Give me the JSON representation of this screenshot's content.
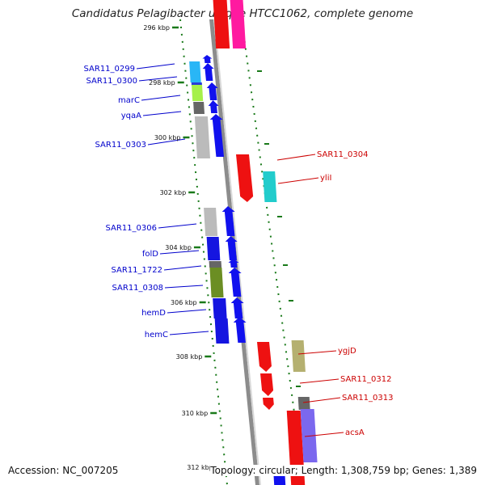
{
  "title": "Candidatus Pelagibacter ubique HTCC1062, complete genome",
  "footer": {
    "accession": "Accession: NC_007205",
    "topology": "Topology: circular; Length: 1,308,759 bp; Genes: 1,389"
  },
  "colors": {
    "forward_label": "#0000cc",
    "reverse_label": "#cc0000",
    "tick": "#1a7a1a",
    "backbone": "#8c8c8c"
  },
  "ticks": [
    {
      "label": "296 kbp",
      "side": "left"
    },
    {
      "label": "298 kbp",
      "side": "left"
    },
    {
      "label": "300 kbp",
      "side": "left"
    },
    {
      "label": "302 kbp",
      "side": "left"
    },
    {
      "label": "304 kbp",
      "side": "left"
    },
    {
      "label": "306 kbp",
      "side": "left"
    },
    {
      "label": "308 kbp",
      "side": "left"
    },
    {
      "label": "310 kbp",
      "side": "left"
    },
    {
      "label": "312 kbp",
      "side": "left"
    }
  ],
  "genes_forward": [
    {
      "label": "SAR11_0299",
      "color": "#29b6f6"
    },
    {
      "label": "SAR11_0300",
      "color": "#2a3bd8"
    },
    {
      "label": "marC",
      "color": "#a6f04a"
    },
    {
      "label": "yqaA",
      "color": "#666666"
    },
    {
      "label": "SAR11_0303",
      "color": "#bbbbbb"
    },
    {
      "label": "SAR11_0306",
      "color": "#bbbbbb"
    },
    {
      "label": "folD",
      "color": "#1515e0"
    },
    {
      "label": "SAR11_1722",
      "color": "#666666"
    },
    {
      "label": "SAR11_0308",
      "color": "#6b8e23"
    },
    {
      "label": "hemD",
      "color": "#1515e0"
    },
    {
      "label": "hemC",
      "color": "#1515e0"
    }
  ],
  "genes_reverse": [
    {
      "label": "SAR11_0304",
      "color": "#ee1111"
    },
    {
      "label": "yliI",
      "color": "#22cccc"
    },
    {
      "label": "ygjD",
      "color": "#b5b070"
    },
    {
      "label": "SAR11_0312",
      "color": "#ee1111"
    },
    {
      "label": "SAR11_0313",
      "color": "#666666"
    },
    {
      "label": "acsA",
      "color": "#7b68ee"
    }
  ]
}
